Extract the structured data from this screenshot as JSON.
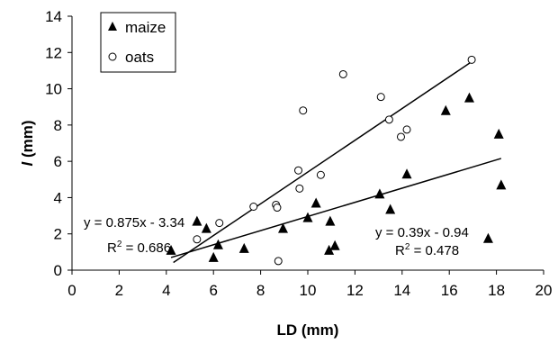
{
  "chart_data": {
    "type": "scatter",
    "xlabel": "LD (mm)",
    "ylabel_italic": "l",
    "ylabel_rest": " (mm)",
    "xlim": [
      0,
      20
    ],
    "ylim": [
      0,
      14
    ],
    "xticks": [
      0,
      2,
      4,
      6,
      8,
      10,
      12,
      14,
      16,
      18,
      20
    ],
    "yticks": [
      0,
      2,
      4,
      6,
      8,
      10,
      12,
      14
    ],
    "grid": false,
    "legend_position": "top-left",
    "series": [
      {
        "name": "maize",
        "marker": "filled-triangle",
        "points": [
          [
            4.2,
            1.1
          ],
          [
            5.3,
            2.7
          ],
          [
            5.7,
            2.3
          ],
          [
            6.0,
            0.7
          ],
          [
            6.2,
            1.4
          ],
          [
            7.3,
            1.2
          ],
          [
            8.95,
            2.3
          ],
          [
            10.0,
            2.9
          ],
          [
            10.35,
            3.7
          ],
          [
            10.9,
            1.1
          ],
          [
            10.95,
            2.7
          ],
          [
            11.15,
            1.35
          ],
          [
            13.05,
            4.2
          ],
          [
            13.5,
            3.35
          ],
          [
            14.2,
            5.3
          ],
          [
            15.85,
            8.8
          ],
          [
            16.85,
            9.5
          ],
          [
            17.65,
            1.75
          ],
          [
            18.1,
            7.5
          ],
          [
            18.2,
            4.7
          ]
        ],
        "trendline": {
          "x": [
            4.2,
            18.2
          ],
          "slope": 0.39,
          "intercept": -0.94
        },
        "equation": "y = 0.39x - 0.94",
        "r2_prefix": "R",
        "r2_sup": "2",
        "r2_value": " = 0.478"
      },
      {
        "name": "oats",
        "marker": "open-circle",
        "points": [
          [
            5.3,
            1.7
          ],
          [
            6.25,
            2.6
          ],
          [
            7.7,
            3.5
          ],
          [
            8.65,
            3.6
          ],
          [
            8.7,
            3.45
          ],
          [
            8.75,
            0.5
          ],
          [
            9.6,
            5.5
          ],
          [
            9.65,
            4.5
          ],
          [
            9.8,
            8.8
          ],
          [
            10.55,
            5.25
          ],
          [
            11.5,
            10.8
          ],
          [
            13.1,
            9.55
          ],
          [
            13.45,
            8.3
          ],
          [
            13.95,
            7.35
          ],
          [
            14.2,
            7.75
          ],
          [
            16.95,
            11.6
          ]
        ],
        "trendline": {
          "x": [
            4.3,
            16.95
          ],
          "slope": 0.875,
          "intercept": -3.34
        },
        "equation": "y = 0.875x - 3.34",
        "r2_prefix": "R",
        "r2_sup": "2",
        "r2_value": " = 0.686"
      }
    ]
  }
}
